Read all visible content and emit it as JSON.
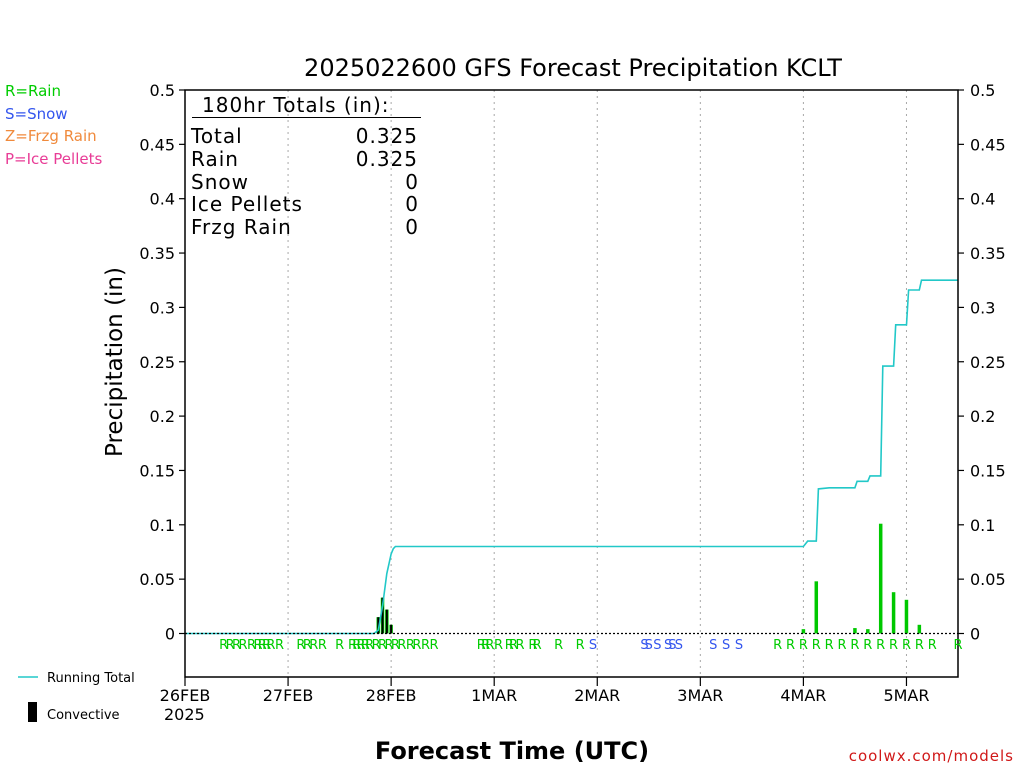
{
  "chart_data": {
    "type": "bar",
    "title": "2025022600 GFS Forecast Precipitation KCLT",
    "xlabel": "Forecast Time (UTC)",
    "ylabel": "Precipitation (in)",
    "ylim": [
      0,
      0.5
    ],
    "xlim_hours": [
      0,
      180
    ],
    "y_ticks": [
      "0",
      "0.05",
      "0.1",
      "0.15",
      "0.2",
      "0.25",
      "0.3",
      "0.35",
      "0.4",
      "0.45",
      "0.5"
    ],
    "x_ticks": [
      {
        "label": "26FEB",
        "hour": 0
      },
      {
        "label": "27FEB",
        "hour": 24
      },
      {
        "label": "28FEB",
        "hour": 48
      },
      {
        "label": "1MAR",
        "hour": 72
      },
      {
        "label": "2MAR",
        "hour": 96
      },
      {
        "label": "3MAR",
        "hour": 120
      },
      {
        "label": "4MAR",
        "hour": 144
      },
      {
        "label": "5MAR",
        "hour": 168
      }
    ],
    "year_label": "2025",
    "grid": "vertical dotted at each day",
    "precip_legend": [
      {
        "text": "R=Rain",
        "color": "#00cc00"
      },
      {
        "text": "S=Snow",
        "color": "#3355ee"
      },
      {
        "text": "Z=Frzg Rain",
        "color": "#f08a3c"
      },
      {
        "text": "P=Ice Pellets",
        "color": "#e83c96"
      }
    ],
    "series_legend": [
      {
        "text": "Running Total",
        "color": "#22c8c8"
      },
      {
        "text": "Convective",
        "color": "#000000"
      }
    ],
    "totals": {
      "heading": "180hr Totals (in):",
      "rows": [
        {
          "label": "Total",
          "value": "0.325"
        },
        {
          "label": "Rain",
          "value": "0.325"
        },
        {
          "label": "Snow",
          "value": "0"
        },
        {
          "label": "Ice Pellets",
          "value": "0"
        },
        {
          "label": "Frzg Rain",
          "value": "0"
        }
      ]
    },
    "series": [
      {
        "name": "Running Total",
        "color": "#22c8c8",
        "points": [
          [
            0,
            0
          ],
          [
            44,
            0
          ],
          [
            45,
            0.003
          ],
          [
            46,
            0.025
          ],
          [
            47,
            0.055
          ],
          [
            48,
            0.073
          ],
          [
            48.5,
            0.078
          ],
          [
            49,
            0.08
          ],
          [
            144,
            0.08
          ],
          [
            145,
            0.085
          ],
          [
            147,
            0.085
          ],
          [
            147.5,
            0.133
          ],
          [
            150,
            0.134
          ],
          [
            156,
            0.134
          ],
          [
            156.5,
            0.14
          ],
          [
            159,
            0.14
          ],
          [
            159.5,
            0.145
          ],
          [
            162,
            0.145
          ],
          [
            162.5,
            0.246
          ],
          [
            165,
            0.246
          ],
          [
            165.5,
            0.284
          ],
          [
            168,
            0.284
          ],
          [
            168.5,
            0.316
          ],
          [
            171,
            0.316
          ],
          [
            171.5,
            0.325
          ],
          [
            180,
            0.325
          ]
        ]
      }
    ],
    "bars": [
      {
        "hour": 45,
        "total": 0.015,
        "convective": 0.015
      },
      {
        "hour": 46,
        "total": 0.033,
        "convective": 0.033
      },
      {
        "hour": 47,
        "total": 0.022,
        "convective": 0.022
      },
      {
        "hour": 48,
        "total": 0.008,
        "convective": 0.008
      },
      {
        "hour": 144,
        "total": 0.004,
        "convective": 0
      },
      {
        "hour": 147,
        "total": 0.048,
        "convective": 0
      },
      {
        "hour": 156,
        "total": 0.005,
        "convective": 0
      },
      {
        "hour": 159,
        "total": 0.004,
        "convective": 0
      },
      {
        "hour": 162,
        "total": 0.101,
        "convective": 0
      },
      {
        "hour": 165,
        "total": 0.038,
        "convective": 0
      },
      {
        "hour": 168,
        "total": 0.031,
        "convective": 0
      },
      {
        "hour": 171,
        "total": 0.008,
        "convective": 0
      }
    ],
    "ptype_markers": [
      {
        "hour": 9,
        "type": "R"
      },
      {
        "hour": 10.5,
        "type": "R"
      },
      {
        "hour": 12,
        "type": "R"
      },
      {
        "hour": 13.5,
        "type": "R"
      },
      {
        "hour": 15.5,
        "type": "R"
      },
      {
        "hour": 17,
        "type": "R"
      },
      {
        "hour": 18,
        "type": "R"
      },
      {
        "hour": 19,
        "type": "R"
      },
      {
        "hour": 20,
        "type": "R"
      },
      {
        "hour": 22,
        "type": "R"
      },
      {
        "hour": 27,
        "type": "R"
      },
      {
        "hour": 28.5,
        "type": "R"
      },
      {
        "hour": 30,
        "type": "R"
      },
      {
        "hour": 32,
        "type": "R"
      },
      {
        "hour": 36,
        "type": "R"
      },
      {
        "hour": 39,
        "type": "R"
      },
      {
        "hour": 40,
        "type": "R"
      },
      {
        "hour": 41,
        "type": "R"
      },
      {
        "hour": 42,
        "type": "R"
      },
      {
        "hour": 43,
        "type": "R"
      },
      {
        "hour": 44.5,
        "type": "R"
      },
      {
        "hour": 46,
        "type": "R"
      },
      {
        "hour": 47.5,
        "type": "R"
      },
      {
        "hour": 49,
        "type": "R"
      },
      {
        "hour": 50.5,
        "type": "R"
      },
      {
        "hour": 52.5,
        "type": "R"
      },
      {
        "hour": 54,
        "type": "R"
      },
      {
        "hour": 56,
        "type": "R"
      },
      {
        "hour": 58,
        "type": "R"
      },
      {
        "hour": 69,
        "type": "R"
      },
      {
        "hour": 70,
        "type": "R"
      },
      {
        "hour": 71,
        "type": "R"
      },
      {
        "hour": 73,
        "type": "R"
      },
      {
        "hour": 75.5,
        "type": "R"
      },
      {
        "hour": 76.5,
        "type": "R"
      },
      {
        "hour": 78,
        "type": "R"
      },
      {
        "hour": 81,
        "type": "R"
      },
      {
        "hour": 82,
        "type": "R"
      },
      {
        "hour": 87,
        "type": "R"
      },
      {
        "hour": 92,
        "type": "R"
      },
      {
        "hour": 95,
        "type": "S"
      },
      {
        "hour": 107,
        "type": "S"
      },
      {
        "hour": 108,
        "type": "S"
      },
      {
        "hour": 110,
        "type": "S"
      },
      {
        "hour": 112.5,
        "type": "S"
      },
      {
        "hour": 113.5,
        "type": "S"
      },
      {
        "hour": 115,
        "type": "S"
      },
      {
        "hour": 123,
        "type": "S"
      },
      {
        "hour": 126,
        "type": "S"
      },
      {
        "hour": 129,
        "type": "S"
      },
      {
        "hour": 138,
        "type": "R"
      },
      {
        "hour": 141,
        "type": "R"
      },
      {
        "hour": 144,
        "type": "R"
      },
      {
        "hour": 147,
        "type": "R"
      },
      {
        "hour": 150,
        "type": "R"
      },
      {
        "hour": 153,
        "type": "R"
      },
      {
        "hour": 156,
        "type": "R"
      },
      {
        "hour": 159,
        "type": "R"
      },
      {
        "hour": 162,
        "type": "R"
      },
      {
        "hour": 165,
        "type": "R"
      },
      {
        "hour": 168,
        "type": "R"
      },
      {
        "hour": 171,
        "type": "R"
      },
      {
        "hour": 174,
        "type": "R"
      },
      {
        "hour": 180,
        "type": "R"
      }
    ],
    "ptype_colors": {
      "R": "#00cc00",
      "S": "#3355ee",
      "Z": "#f08a3c",
      "P": "#e83c96"
    },
    "bar_color": "#00c800",
    "convective_color": "#000000",
    "credit": "coolwx.com/models"
  }
}
